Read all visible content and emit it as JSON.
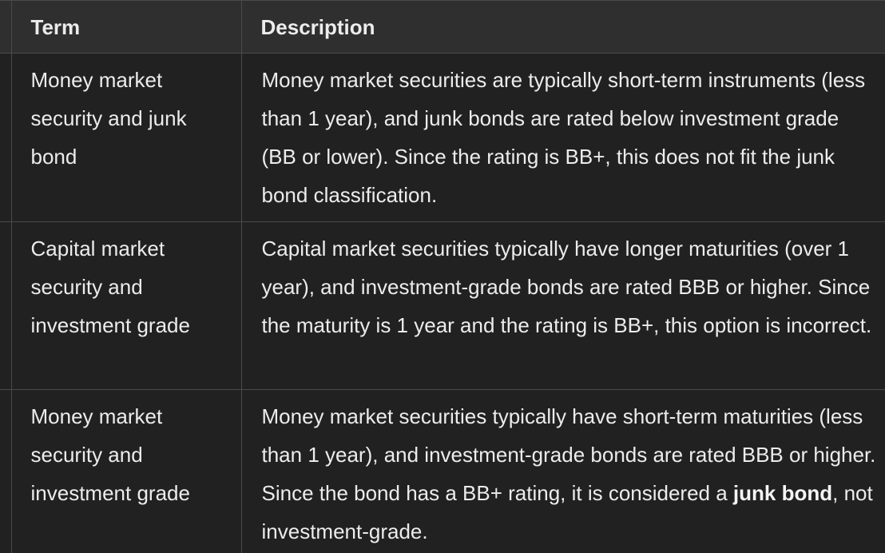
{
  "table": {
    "headers": [
      "Term",
      "Description"
    ],
    "rows": [
      {
        "term": "Money market security and junk bond",
        "description": "Money market securities are typically short-term instruments (less than 1 year), and junk bonds are rated below investment grade (BB or lower). Since the rating is BB+, this does not fit the junk bond classification."
      },
      {
        "term": "Capital market security and investment grade",
        "description": "Capital market securities typically have longer maturities (over 1 year), and investment-grade bonds are rated BBB or higher. Since the maturity is 1 year and the rating is BB+, this option is incorrect."
      },
      {
        "term": "Money market security and investment grade",
        "description_pre": "Money market securities typically have short-term maturities (less than 1 year), and investment-grade bonds are rated BBB or higher. Since the bond has a BB+ rating, it is considered a ",
        "description_bold": "junk bond",
        "description_post": ", not investment-grade."
      }
    ]
  }
}
